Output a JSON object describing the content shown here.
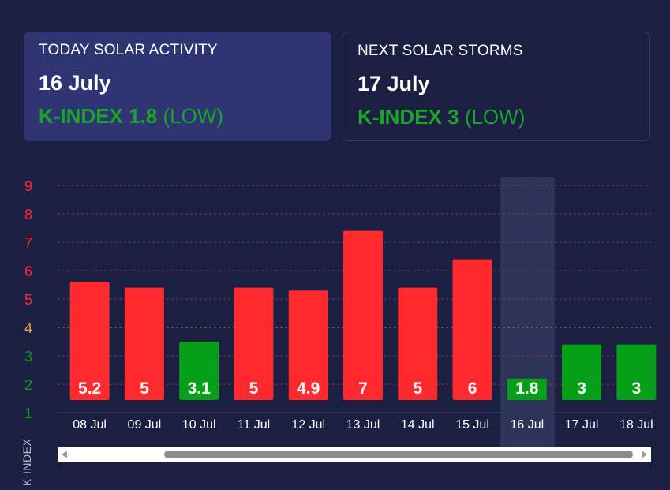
{
  "today": {
    "label": "TODAY SOLAR ACTIVITY",
    "date": "16 July",
    "k_label": "K-INDEX 1.8",
    "level": "(LOW)"
  },
  "next": {
    "label": "NEXT SOLAR STORMS",
    "date": "17 July",
    "k_label": "K-INDEX 3",
    "level": "(LOW)"
  },
  "colors": {
    "high": "#ff2a2e",
    "low": "#05a017",
    "mid_tick": "#f3a83b",
    "grid_red": "#8a3550",
    "grid_orange": "#a07a3a",
    "highlight": "#2e3358"
  },
  "chart_data": {
    "type": "bar",
    "categories": [
      "08 Jul",
      "09 Jul",
      "10 Jul",
      "11 Jul",
      "12 Jul",
      "13 Jul",
      "14 Jul",
      "15 Jul",
      "16 Jul",
      "17 Jul",
      "18 Jul"
    ],
    "values": [
      5.2,
      5,
      3.1,
      5,
      4.9,
      7,
      5,
      6,
      1.8,
      3,
      3
    ],
    "ylabel": "K-INDEX",
    "yticks": [
      1,
      2,
      3,
      4,
      5,
      6,
      7,
      8,
      9
    ],
    "ylim": [
      1,
      9
    ],
    "highlight_category": "16 Jul",
    "grid": true
  }
}
